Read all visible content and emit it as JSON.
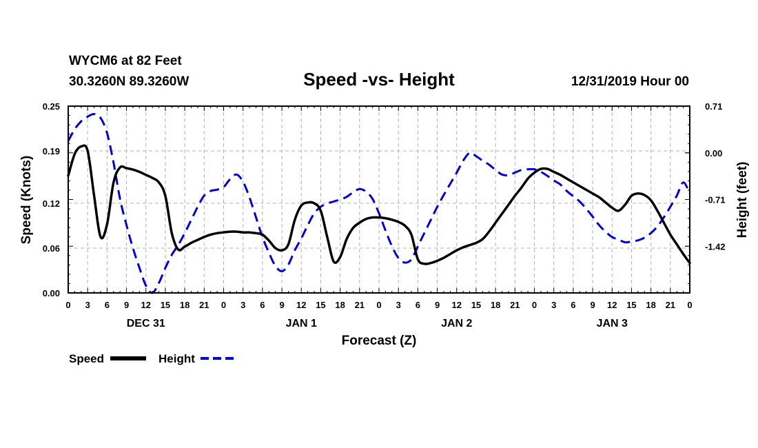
{
  "header": {
    "station": "WYCM6 at 82 Feet",
    "coords": "30.3260N 89.3260W",
    "title": "Speed -vs- Height",
    "run": "12/31/2019 Hour 00"
  },
  "legend": {
    "speed_label": "Speed",
    "height_label": "Height"
  },
  "colors": {
    "speed": "#000000",
    "height": "#0000cc",
    "grid": "#b0b0b0"
  },
  "chart_data": {
    "type": "line",
    "title": "Speed -vs- Height",
    "xlabel": "Forecast (Z)",
    "ylabel": "Speed (Knots)",
    "y2label": "Height (feet)",
    "xlim": [
      0,
      96
    ],
    "ylim": [
      0,
      0.25
    ],
    "y2lim": [
      -2.13,
      0.71
    ],
    "yticks": [
      "0.00",
      "0.06",
      "0.12",
      "0.19",
      "0.25"
    ],
    "y2ticks": [
      "-1.42",
      "-0.71",
      "0.00",
      "0.71"
    ],
    "xticks": [
      "0",
      "3",
      "6",
      "9",
      "12",
      "15",
      "18",
      "21",
      "0",
      "3",
      "6",
      "9",
      "12",
      "15",
      "18",
      "21",
      "0",
      "3",
      "6",
      "9",
      "12",
      "15",
      "18",
      "21",
      "0",
      "3",
      "6",
      "9",
      "12",
      "15",
      "18",
      "21",
      "0"
    ],
    "day_labels": [
      {
        "label": "DEC 31",
        "hour": 12
      },
      {
        "label": "JAN 1",
        "hour": 36
      },
      {
        "label": "JAN 2",
        "hour": 60
      },
      {
        "label": "JAN 3",
        "hour": 84
      }
    ],
    "series": [
      {
        "name": "Speed",
        "axis": "left",
        "style": "solid",
        "x": [
          0,
          1,
          2,
          3,
          4,
          5,
          6,
          7,
          8,
          9,
          10,
          11,
          12,
          13,
          14,
          15,
          16,
          17,
          18,
          19,
          20,
          21,
          22,
          23,
          24,
          25,
          26,
          27,
          28,
          29,
          30,
          31,
          32,
          33,
          34,
          35,
          36,
          37,
          38,
          39,
          40,
          41,
          42,
          43,
          44,
          45,
          46,
          47,
          48,
          49,
          50,
          51,
          52,
          53,
          54,
          55,
          56,
          57,
          58,
          59,
          60,
          61,
          62,
          63,
          64,
          65,
          66,
          67,
          68,
          69,
          70,
          71,
          72,
          73,
          74,
          75,
          76,
          77,
          78,
          79,
          80,
          81,
          82,
          83,
          84,
          85,
          86,
          87,
          88,
          89,
          90,
          91,
          92,
          93,
          94,
          95,
          96
        ],
        "values": [
          0.157,
          0.186,
          0.196,
          0.19,
          0.13,
          0.075,
          0.092,
          0.148,
          0.168,
          0.167,
          0.165,
          0.162,
          0.158,
          0.154,
          0.148,
          0.13,
          0.08,
          0.058,
          0.062,
          0.067,
          0.071,
          0.075,
          0.078,
          0.08,
          0.081,
          0.082,
          0.082,
          0.081,
          0.081,
          0.08,
          0.078,
          0.07,
          0.06,
          0.057,
          0.065,
          0.098,
          0.117,
          0.121,
          0.12,
          0.11,
          0.075,
          0.042,
          0.048,
          0.072,
          0.087,
          0.094,
          0.099,
          0.101,
          0.101,
          0.1,
          0.098,
          0.095,
          0.09,
          0.078,
          0.045,
          0.039,
          0.04,
          0.043,
          0.047,
          0.052,
          0.057,
          0.061,
          0.064,
          0.067,
          0.072,
          0.082,
          0.094,
          0.106,
          0.118,
          0.13,
          0.141,
          0.153,
          0.161,
          0.166,
          0.166,
          0.162,
          0.158,
          0.153,
          0.148,
          0.143,
          0.138,
          0.133,
          0.128,
          0.121,
          0.114,
          0.11,
          0.118,
          0.13,
          0.133,
          0.131,
          0.124,
          0.11,
          0.094,
          0.078,
          0.065,
          0.052,
          0.04
        ]
      },
      {
        "name": "Height",
        "axis": "right",
        "style": "dashed",
        "x": [
          0,
          1,
          2,
          3,
          4,
          5,
          6,
          7,
          8,
          9,
          10,
          11,
          12,
          13,
          14,
          15,
          16,
          17,
          18,
          19,
          20,
          21,
          22,
          23,
          24,
          25,
          26,
          27,
          28,
          29,
          30,
          31,
          32,
          33,
          34,
          35,
          36,
          37,
          38,
          39,
          40,
          41,
          42,
          43,
          44,
          45,
          46,
          47,
          48,
          49,
          50,
          51,
          52,
          53,
          54,
          55,
          56,
          57,
          58,
          59,
          60,
          61,
          62,
          63,
          64,
          65,
          66,
          67,
          68,
          69,
          70,
          71,
          72,
          73,
          74,
          75,
          76,
          77,
          78,
          79,
          80,
          81,
          82,
          83,
          84,
          85,
          86,
          87,
          88,
          89,
          90,
          91,
          92,
          93,
          94,
          95,
          96
        ],
        "values": [
          0.18,
          0.36,
          0.48,
          0.55,
          0.59,
          0.53,
          0.3,
          -0.15,
          -0.7,
          -1.1,
          -1.45,
          -1.75,
          -2.02,
          -2.15,
          -1.98,
          -1.75,
          -1.55,
          -1.4,
          -1.22,
          -1.02,
          -0.82,
          -0.65,
          -0.58,
          -0.56,
          -0.52,
          -0.4,
          -0.33,
          -0.44,
          -0.68,
          -0.98,
          -1.28,
          -1.52,
          -1.72,
          -1.8,
          -1.7,
          -1.48,
          -1.3,
          -1.1,
          -0.92,
          -0.82,
          -0.77,
          -0.74,
          -0.71,
          -0.67,
          -0.6,
          -0.55,
          -0.59,
          -0.7,
          -0.92,
          -1.18,
          -1.42,
          -1.6,
          -1.67,
          -1.62,
          -1.42,
          -1.22,
          -1.02,
          -0.82,
          -0.64,
          -0.47,
          -0.3,
          -0.12,
          0.0,
          -0.05,
          -0.12,
          -0.18,
          -0.26,
          -0.33,
          -0.34,
          -0.3,
          -0.26,
          -0.25,
          -0.25,
          -0.29,
          -0.35,
          -0.42,
          -0.48,
          -0.58,
          -0.66,
          -0.74,
          -0.85,
          -0.97,
          -1.1,
          -1.2,
          -1.28,
          -1.32,
          -1.36,
          -1.35,
          -1.33,
          -1.29,
          -1.22,
          -1.12,
          -0.98,
          -0.82,
          -0.65,
          -0.45,
          -0.62
        ]
      }
    ]
  }
}
